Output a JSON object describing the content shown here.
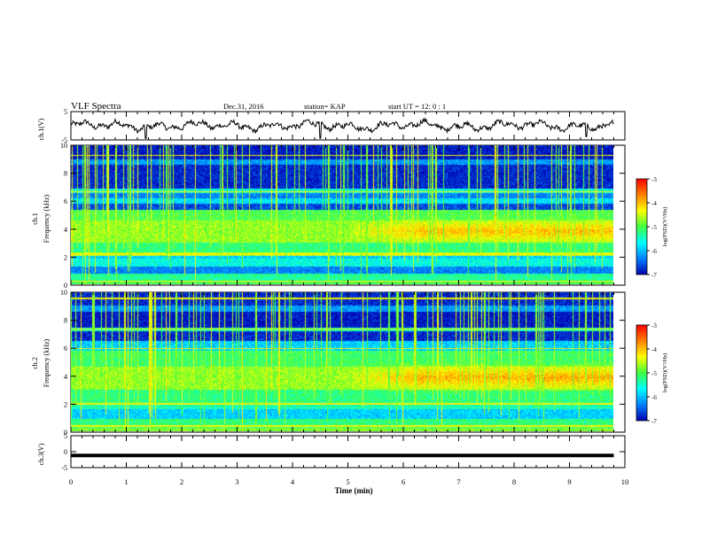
{
  "header": {
    "title": "VLF Spectra",
    "date": "Dec.31, 2016",
    "station": "station= KAP",
    "start": "start  UT =   12: 0  : 1"
  },
  "colorbar": {
    "label": "log(PSD)(V²/Hz)",
    "ticks": [
      "-3",
      "-4",
      "-5",
      "-6",
      "-7"
    ],
    "colors": [
      "#ff0000",
      "#ff8000",
      "#ffff00",
      "#40ff40",
      "#00ffff",
      "#0080ff",
      "#0000b0"
    ]
  },
  "chart_data": [
    {
      "type": "line",
      "name": "ch1-waveform",
      "ylabel": "ch.1(V)",
      "ylim": [
        -5,
        5
      ],
      "yticks": [
        "5",
        "-5"
      ],
      "xlim": [
        0,
        10
      ],
      "x_end_min": 9.8,
      "style": "noisy oscillation around ~0 V with amplitude ~1.5 V"
    },
    {
      "type": "heatmap",
      "name": "ch1-spectrogram",
      "ylabel": "ch.1\nFrequency (kHz)",
      "ylim": [
        0,
        10
      ],
      "yticks": [
        "0",
        "2",
        "4",
        "6",
        "8",
        "10"
      ],
      "xlim": [
        0,
        9.8
      ],
      "zlim": [
        -7,
        -3
      ],
      "bands": [
        {
          "f0": 0.0,
          "f1": 0.3,
          "level": -5.0
        },
        {
          "f0": 0.3,
          "f1": 0.8,
          "level": -5.3
        },
        {
          "f0": 0.8,
          "f1": 1.3,
          "level": -6.3
        },
        {
          "f0": 1.3,
          "f1": 1.9,
          "level": -5.6
        },
        {
          "f0": 1.9,
          "f1": 2.1,
          "level": -5.9
        },
        {
          "f0": 2.1,
          "f1": 2.3,
          "level": -4.6
        },
        {
          "f0": 2.3,
          "f1": 3.0,
          "level": -5.2
        },
        {
          "f0": 3.0,
          "f1": 4.6,
          "level": -4.7
        },
        {
          "f0": 4.6,
          "f1": 5.4,
          "level": -5.0
        },
        {
          "f0": 5.4,
          "f1": 5.8,
          "level": -6.6
        },
        {
          "f0": 5.8,
          "f1": 6.2,
          "level": -5.8
        },
        {
          "f0": 6.2,
          "f1": 6.6,
          "level": -6.3
        },
        {
          "f0": 6.6,
          "f1": 6.9,
          "level": -5.6
        },
        {
          "f0": 6.9,
          "f1": 8.6,
          "level": -6.8
        },
        {
          "f0": 8.6,
          "f1": 9.0,
          "level": -6.2
        },
        {
          "f0": 9.0,
          "f1": 10.0,
          "level": -6.9
        }
      ],
      "hot_region": {
        "t0": 6.3,
        "t1": 9.8,
        "f0": 3.4,
        "f1": 4.3,
        "level": -3.9
      },
      "lines_khz": [
        0.25,
        2.2,
        6.7,
        9.3
      ]
    },
    {
      "type": "heatmap",
      "name": "ch2-spectrogram",
      "ylabel": "ch.2\nFrequency (kHz)",
      "ylim": [
        0,
        10
      ],
      "yticks": [
        "0",
        "2",
        "4",
        "6",
        "8",
        "10"
      ],
      "xlim": [
        0,
        9.8
      ],
      "zlim": [
        -7,
        -3
      ],
      "bands": [
        {
          "f0": 0.0,
          "f1": 0.3,
          "level": -4.8
        },
        {
          "f0": 0.3,
          "f1": 0.9,
          "level": -5.2
        },
        {
          "f0": 0.9,
          "f1": 1.6,
          "level": -5.9
        },
        {
          "f0": 1.6,
          "f1": 2.0,
          "level": -5.4
        },
        {
          "f0": 2.0,
          "f1": 3.0,
          "level": -5.2
        },
        {
          "f0": 3.0,
          "f1": 4.7,
          "level": -4.7
        },
        {
          "f0": 4.7,
          "f1": 5.8,
          "level": -5.1
        },
        {
          "f0": 5.8,
          "f1": 6.5,
          "level": -5.9
        },
        {
          "f0": 6.5,
          "f1": 7.2,
          "level": -6.8
        },
        {
          "f0": 7.2,
          "f1": 7.5,
          "level": -5.4
        },
        {
          "f0": 7.5,
          "f1": 8.6,
          "level": -6.9
        },
        {
          "f0": 8.6,
          "f1": 9.1,
          "level": -6.2
        },
        {
          "f0": 9.1,
          "f1": 10.0,
          "level": -6.8
        }
      ],
      "hot_region": {
        "t0": 6.3,
        "t1": 9.8,
        "f0": 3.3,
        "f1": 4.5,
        "level": -3.8
      },
      "lines_khz": [
        0.4,
        2.0,
        6.0,
        7.4,
        9.6
      ]
    },
    {
      "type": "line",
      "name": "ch3-waveform",
      "ylabel": "ch.3(V)",
      "ylim": [
        -5,
        5
      ],
      "yticks": [
        "5",
        "0",
        "-5"
      ],
      "xlim": [
        0,
        10
      ],
      "x_end_min": 9.8,
      "constant_value": -1.2
    }
  ],
  "xaxis": {
    "label": "Time  (min)",
    "ticks": [
      "0",
      "1",
      "2",
      "3",
      "4",
      "5",
      "6",
      "7",
      "8",
      "9",
      "10"
    ]
  }
}
